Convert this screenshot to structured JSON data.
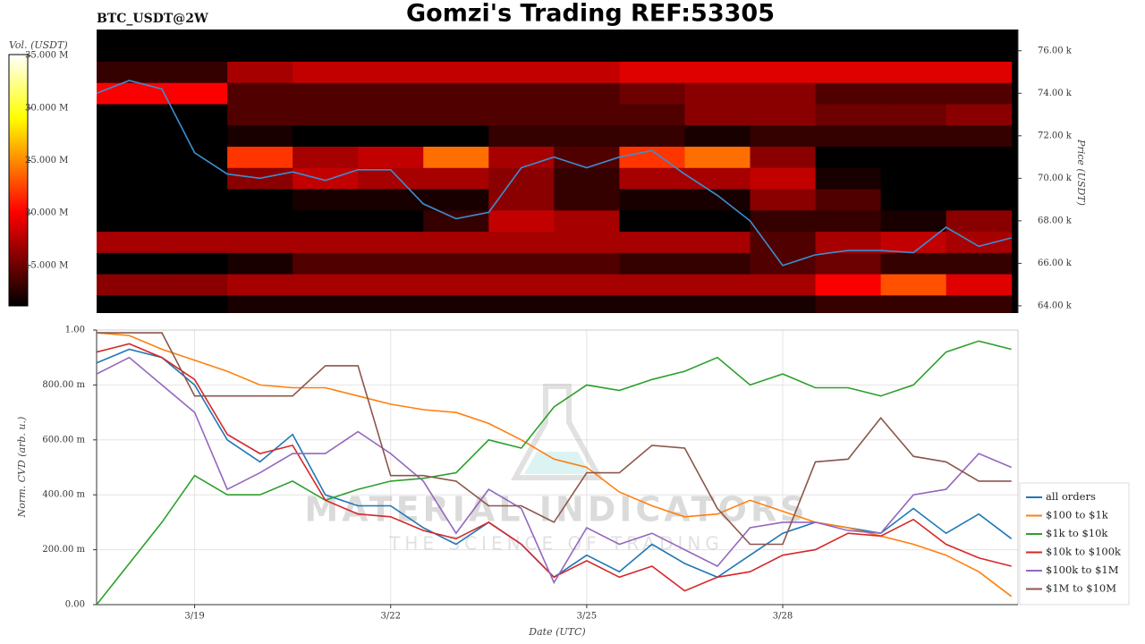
{
  "chart_data": [
    {
      "type": "heatmap",
      "title": "Gomzi's Trading REF:53305",
      "label": "BTC_USDT@2W",
      "ylabel": "Price (USDT)",
      "xlim": [
        17.5,
        31.6
      ],
      "ylim": [
        63.66,
        77.0
      ],
      "yticks": [
        {
          "value": 64,
          "label": "64.00 k"
        },
        {
          "value": 66,
          "label": "66.00 k"
        },
        {
          "value": 68,
          "label": "68.00 k"
        },
        {
          "value": 70,
          "label": "70.00 k"
        },
        {
          "value": 72,
          "label": "72.00 k"
        },
        {
          "value": 74,
          "label": "74.00 k"
        },
        {
          "value": 76,
          "label": "76.00 k"
        }
      ],
      "colormap": "hot",
      "colorbar": {
        "label": "Vol. (USDT)",
        "lim": [
          11.15,
          35.1
        ],
        "ticks": [
          {
            "value": 15,
            "label": "15.000 M"
          },
          {
            "value": 20,
            "label": "20.000 M"
          },
          {
            "value": 25,
            "label": "25.000 M"
          },
          {
            "value": 30,
            "label": "30.000 M"
          },
          {
            "value": 35,
            "label": "35.000 M"
          }
        ]
      },
      "x_edges": [
        17.5,
        18.5,
        19.5,
        20.5,
        21.5,
        22.5,
        23.5,
        24.5,
        25.5,
        26.5,
        27.5,
        28.5,
        29.5,
        30.5,
        31.5
      ],
      "levels": [
        64,
        65,
        66,
        67,
        68,
        69,
        70,
        71,
        72,
        73,
        74,
        75,
        76
      ],
      "z": [
        [
          11,
          11,
          12,
          12,
          12,
          12,
          12,
          12,
          12,
          12,
          12,
          13,
          13,
          13
        ],
        [
          16,
          16,
          17,
          17,
          17,
          17,
          17,
          17,
          17,
          17,
          17,
          20,
          23,
          19
        ],
        [
          11,
          11,
          12,
          14,
          14,
          14,
          14,
          14,
          13,
          13,
          14,
          15,
          13,
          13
        ],
        [
          17,
          17,
          17,
          17,
          17,
          17,
          17,
          17,
          17,
          17,
          14,
          17,
          18,
          17
        ],
        [
          11,
          11,
          11,
          11,
          11,
          13,
          18,
          17,
          11,
          11,
          13,
          13,
          12,
          16
        ],
        [
          11,
          11,
          11,
          12,
          12,
          12,
          16,
          13,
          12,
          12,
          16,
          14,
          11,
          11
        ],
        [
          11,
          11,
          16,
          18,
          17,
          17,
          16,
          13,
          17,
          17,
          18,
          12,
          11,
          11
        ],
        [
          11,
          11,
          22,
          17,
          18,
          24,
          17,
          14,
          22,
          24,
          16,
          11,
          11,
          11
        ],
        [
          11,
          11,
          12,
          11,
          11,
          11,
          13,
          13,
          13,
          12,
          13,
          13,
          13,
          13
        ],
        [
          11,
          11,
          14,
          14,
          14,
          14,
          14,
          14,
          14,
          16,
          16,
          15,
          15,
          16
        ],
        [
          20,
          20,
          14,
          14,
          14,
          14,
          14,
          14,
          15,
          16,
          16,
          14,
          14,
          14
        ],
        [
          13,
          13,
          17,
          18,
          18,
          18,
          18,
          18,
          19,
          19,
          19,
          19,
          19,
          19
        ],
        [
          11,
          11,
          11,
          11,
          11,
          11,
          11,
          11,
          11,
          11,
          11,
          11,
          11,
          11
        ]
      ],
      "x": [
        17.5,
        18,
        18.5,
        19,
        19.5,
        20,
        20.5,
        21,
        21.5,
        22,
        22.5,
        23,
        23.5,
        24,
        24.5,
        25,
        25.5,
        26,
        26.5,
        27,
        27.5,
        28,
        28.5,
        29,
        29.5,
        30,
        30.5,
        31,
        31.5
      ],
      "series": [
        {
          "color": "#3b8fd0",
          "values": [
            74.0,
            74.6,
            74.2,
            71.2,
            70.2,
            70.0,
            70.3,
            69.9,
            70.4,
            70.4,
            68.8,
            68.1,
            68.4,
            70.5,
            71.0,
            70.5,
            71.0,
            71.3,
            70.2,
            69.2,
            68.0,
            65.9,
            66.4,
            66.6,
            66.6,
            66.5,
            67.7,
            66.8,
            67.2
          ]
        }
      ]
    },
    {
      "type": "line",
      "ylabel": "Norm. CVD (arb. u.)",
      "xlabel": "Date (UTC)",
      "xlim": [
        17.5,
        31.6
      ],
      "ylim": [
        0,
        1
      ],
      "grid": true,
      "legend": "right",
      "xticks": [
        {
          "value": 19,
          "label": "3/19"
        },
        {
          "value": 22,
          "label": "3/22"
        },
        {
          "value": 25,
          "label": "3/25"
        },
        {
          "value": 28,
          "label": "3/28"
        }
      ],
      "yticks": [
        {
          "value": 0,
          "label": "0.00"
        },
        {
          "value": 0.2,
          "label": "200.00 m"
        },
        {
          "value": 0.4,
          "label": "400.00 m"
        },
        {
          "value": 0.6,
          "label": "600.00 m"
        },
        {
          "value": 0.8,
          "label": "800.00 m"
        },
        {
          "value": 1,
          "label": "1.00"
        }
      ],
      "x": [
        17.5,
        18,
        18.5,
        19,
        19.5,
        20,
        20.5,
        21,
        21.5,
        22,
        22.5,
        23,
        23.5,
        24,
        24.5,
        25,
        25.5,
        26,
        26.5,
        27,
        27.5,
        28,
        28.5,
        29,
        29.5,
        30,
        30.5,
        31,
        31.5
      ],
      "series": [
        {
          "name": "all orders",
          "color": "#1f77b4",
          "values": [
            0.88,
            0.93,
            0.9,
            0.8,
            0.6,
            0.52,
            0.62,
            0.4,
            0.36,
            0.36,
            0.28,
            0.22,
            0.3,
            0.22,
            0.1,
            0.18,
            0.12,
            0.22,
            0.15,
            0.1,
            0.18,
            0.26,
            0.3,
            0.28,
            0.26,
            0.35,
            0.26,
            0.33,
            0.24
          ]
        },
        {
          "name": "$100 to $1k",
          "color": "#ff7f0e",
          "values": [
            0.99,
            0.98,
            0.93,
            0.89,
            0.85,
            0.8,
            0.79,
            0.79,
            0.76,
            0.73,
            0.71,
            0.7,
            0.66,
            0.6,
            0.53,
            0.5,
            0.41,
            0.36,
            0.32,
            0.33,
            0.38,
            0.34,
            0.3,
            0.28,
            0.25,
            0.22,
            0.18,
            0.12,
            0.03
          ]
        },
        {
          "name": "$1k to $10k",
          "color": "#2ca02c",
          "values": [
            0.0,
            0.15,
            0.3,
            0.47,
            0.4,
            0.4,
            0.45,
            0.38,
            0.42,
            0.45,
            0.46,
            0.48,
            0.6,
            0.57,
            0.72,
            0.8,
            0.78,
            0.82,
            0.85,
            0.9,
            0.8,
            0.84,
            0.79,
            0.79,
            0.76,
            0.8,
            0.92,
            0.96,
            0.93
          ]
        },
        {
          "name": "$10k to $100k",
          "color": "#d62728",
          "values": [
            0.92,
            0.95,
            0.9,
            0.82,
            0.62,
            0.55,
            0.58,
            0.38,
            0.33,
            0.32,
            0.27,
            0.24,
            0.3,
            0.22,
            0.1,
            0.16,
            0.1,
            0.14,
            0.05,
            0.1,
            0.12,
            0.18,
            0.2,
            0.26,
            0.25,
            0.31,
            0.22,
            0.17,
            0.14
          ]
        },
        {
          "name": "$100k to $1M",
          "color": "#9467bd",
          "values": [
            0.84,
            0.9,
            0.8,
            0.7,
            0.42,
            0.48,
            0.55,
            0.55,
            0.63,
            0.55,
            0.45,
            0.26,
            0.42,
            0.35,
            0.08,
            0.28,
            0.22,
            0.26,
            0.2,
            0.14,
            0.28,
            0.3,
            0.3,
            0.27,
            0.26,
            0.4,
            0.42,
            0.55,
            0.5
          ]
        },
        {
          "name": "$1M to $10M",
          "color": "#8c564b",
          "values": [
            0.99,
            0.99,
            0.99,
            0.76,
            0.76,
            0.76,
            0.76,
            0.87,
            0.87,
            0.47,
            0.47,
            0.45,
            0.36,
            0.36,
            0.3,
            0.48,
            0.48,
            0.58,
            0.57,
            0.35,
            0.22,
            0.22,
            0.52,
            0.53,
            0.68,
            0.54,
            0.52,
            0.45,
            0.45
          ]
        }
      ]
    }
  ],
  "watermark": {
    "title": "MATERIAL INDICATORS",
    "subtitle": "THE SCIENCE OF TRADING"
  }
}
